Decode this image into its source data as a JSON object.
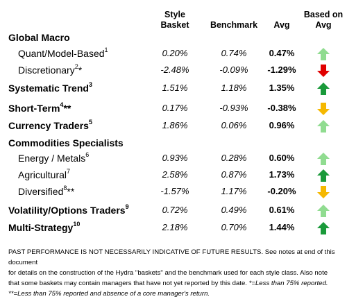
{
  "header": {
    "style_basket": [
      "Style",
      "Basket"
    ],
    "benchmark": "Benchmark",
    "avg": "Avg",
    "based_on_avg": [
      "Based on",
      "Avg"
    ]
  },
  "rows": [
    {
      "label": "Global Macro",
      "sup": "",
      "tail": "",
      "main": true
    },
    {
      "label": "Quant/Model-Based",
      "sup": "1",
      "tail": "",
      "main": false,
      "style": "0.20%",
      "bench": "0.74%",
      "avg": "0.47%",
      "arrow": "up-light",
      "color": "#90dc90"
    },
    {
      "label": "Discretionary",
      "sup": "2",
      "tail": "*",
      "main": false,
      "style": "-2.48%",
      "bench": "-0.09%",
      "avg": "-1.29%",
      "arrow": "down-red",
      "color": "#e00000"
    },
    {
      "label": "Systematic Trend",
      "sup": "3",
      "tail": "",
      "main": true,
      "style": "1.51%",
      "bench": "1.18%",
      "avg": "1.35%",
      "arrow": "up-dark",
      "color": "#1a9a3a"
    },
    {
      "label": "Short-Term",
      "sup": "4",
      "tail": "**",
      "main": true,
      "style": "0.17%",
      "bench": "-0.93%",
      "avg": "-0.38%",
      "arrow": "down-orange",
      "color": "#f5b800"
    },
    {
      "label": "Currency Traders",
      "sup": "5",
      "tail": "",
      "main": true,
      "style": "1.86%",
      "bench": "0.06%",
      "avg": "0.96%",
      "arrow": "up-light",
      "color": "#90dc90"
    },
    {
      "label": "Commodities Specialists",
      "sup": "",
      "tail": "",
      "main": true
    },
    {
      "label": "Energy / Metals",
      "sup": "6",
      "tail": "",
      "main": false,
      "style": "0.93%",
      "bench": "0.28%",
      "avg": "0.60%",
      "arrow": "up-light",
      "color": "#90dc90"
    },
    {
      "label": "Agricultural",
      "sup": "7",
      "tail": "",
      "main": false,
      "style": "2.58%",
      "bench": "0.87%",
      "avg": "1.73%",
      "arrow": "up-dark",
      "color": "#1a9a3a"
    },
    {
      "label": "Diversified",
      "sup": "8",
      "tail": "**",
      "main": false,
      "style": "-1.57%",
      "bench": "1.17%",
      "avg": "-0.20%",
      "arrow": "down-orange",
      "color": "#f5b800"
    },
    {
      "label": "Volatility/Options Traders",
      "sup": "9",
      "tail": "",
      "main": true,
      "style": "0.72%",
      "bench": "0.49%",
      "avg": "0.61%",
      "arrow": "up-light",
      "color": "#90dc90"
    },
    {
      "label": "Multi-Strategy",
      "sup": "10",
      "tail": "",
      "main": true,
      "style": "2.18%",
      "bench": "0.70%",
      "avg": "1.44%",
      "arrow": "up-dark",
      "color": "#1a9a3a"
    }
  ],
  "footnote": [
    {
      "text": "PAST PERFORMANCE IS NOT NECESSARILY INDICATIVE OF FUTURE RESULTS.  See notes at end of this document",
      "italic": false
    },
    {
      "text": "for details on the construction of the Hydra \"baskets\" and the benchmark used for each style class.  Also note",
      "italic": false
    },
    {
      "text": "that some baskets may contain managers that have not yet reported by this date.  ",
      "italic": false,
      "extra": "*=Less than 75% reported."
    },
    {
      "text": "**=Less than 75% reported and absence of a core manager's return.",
      "italic": true
    }
  ]
}
